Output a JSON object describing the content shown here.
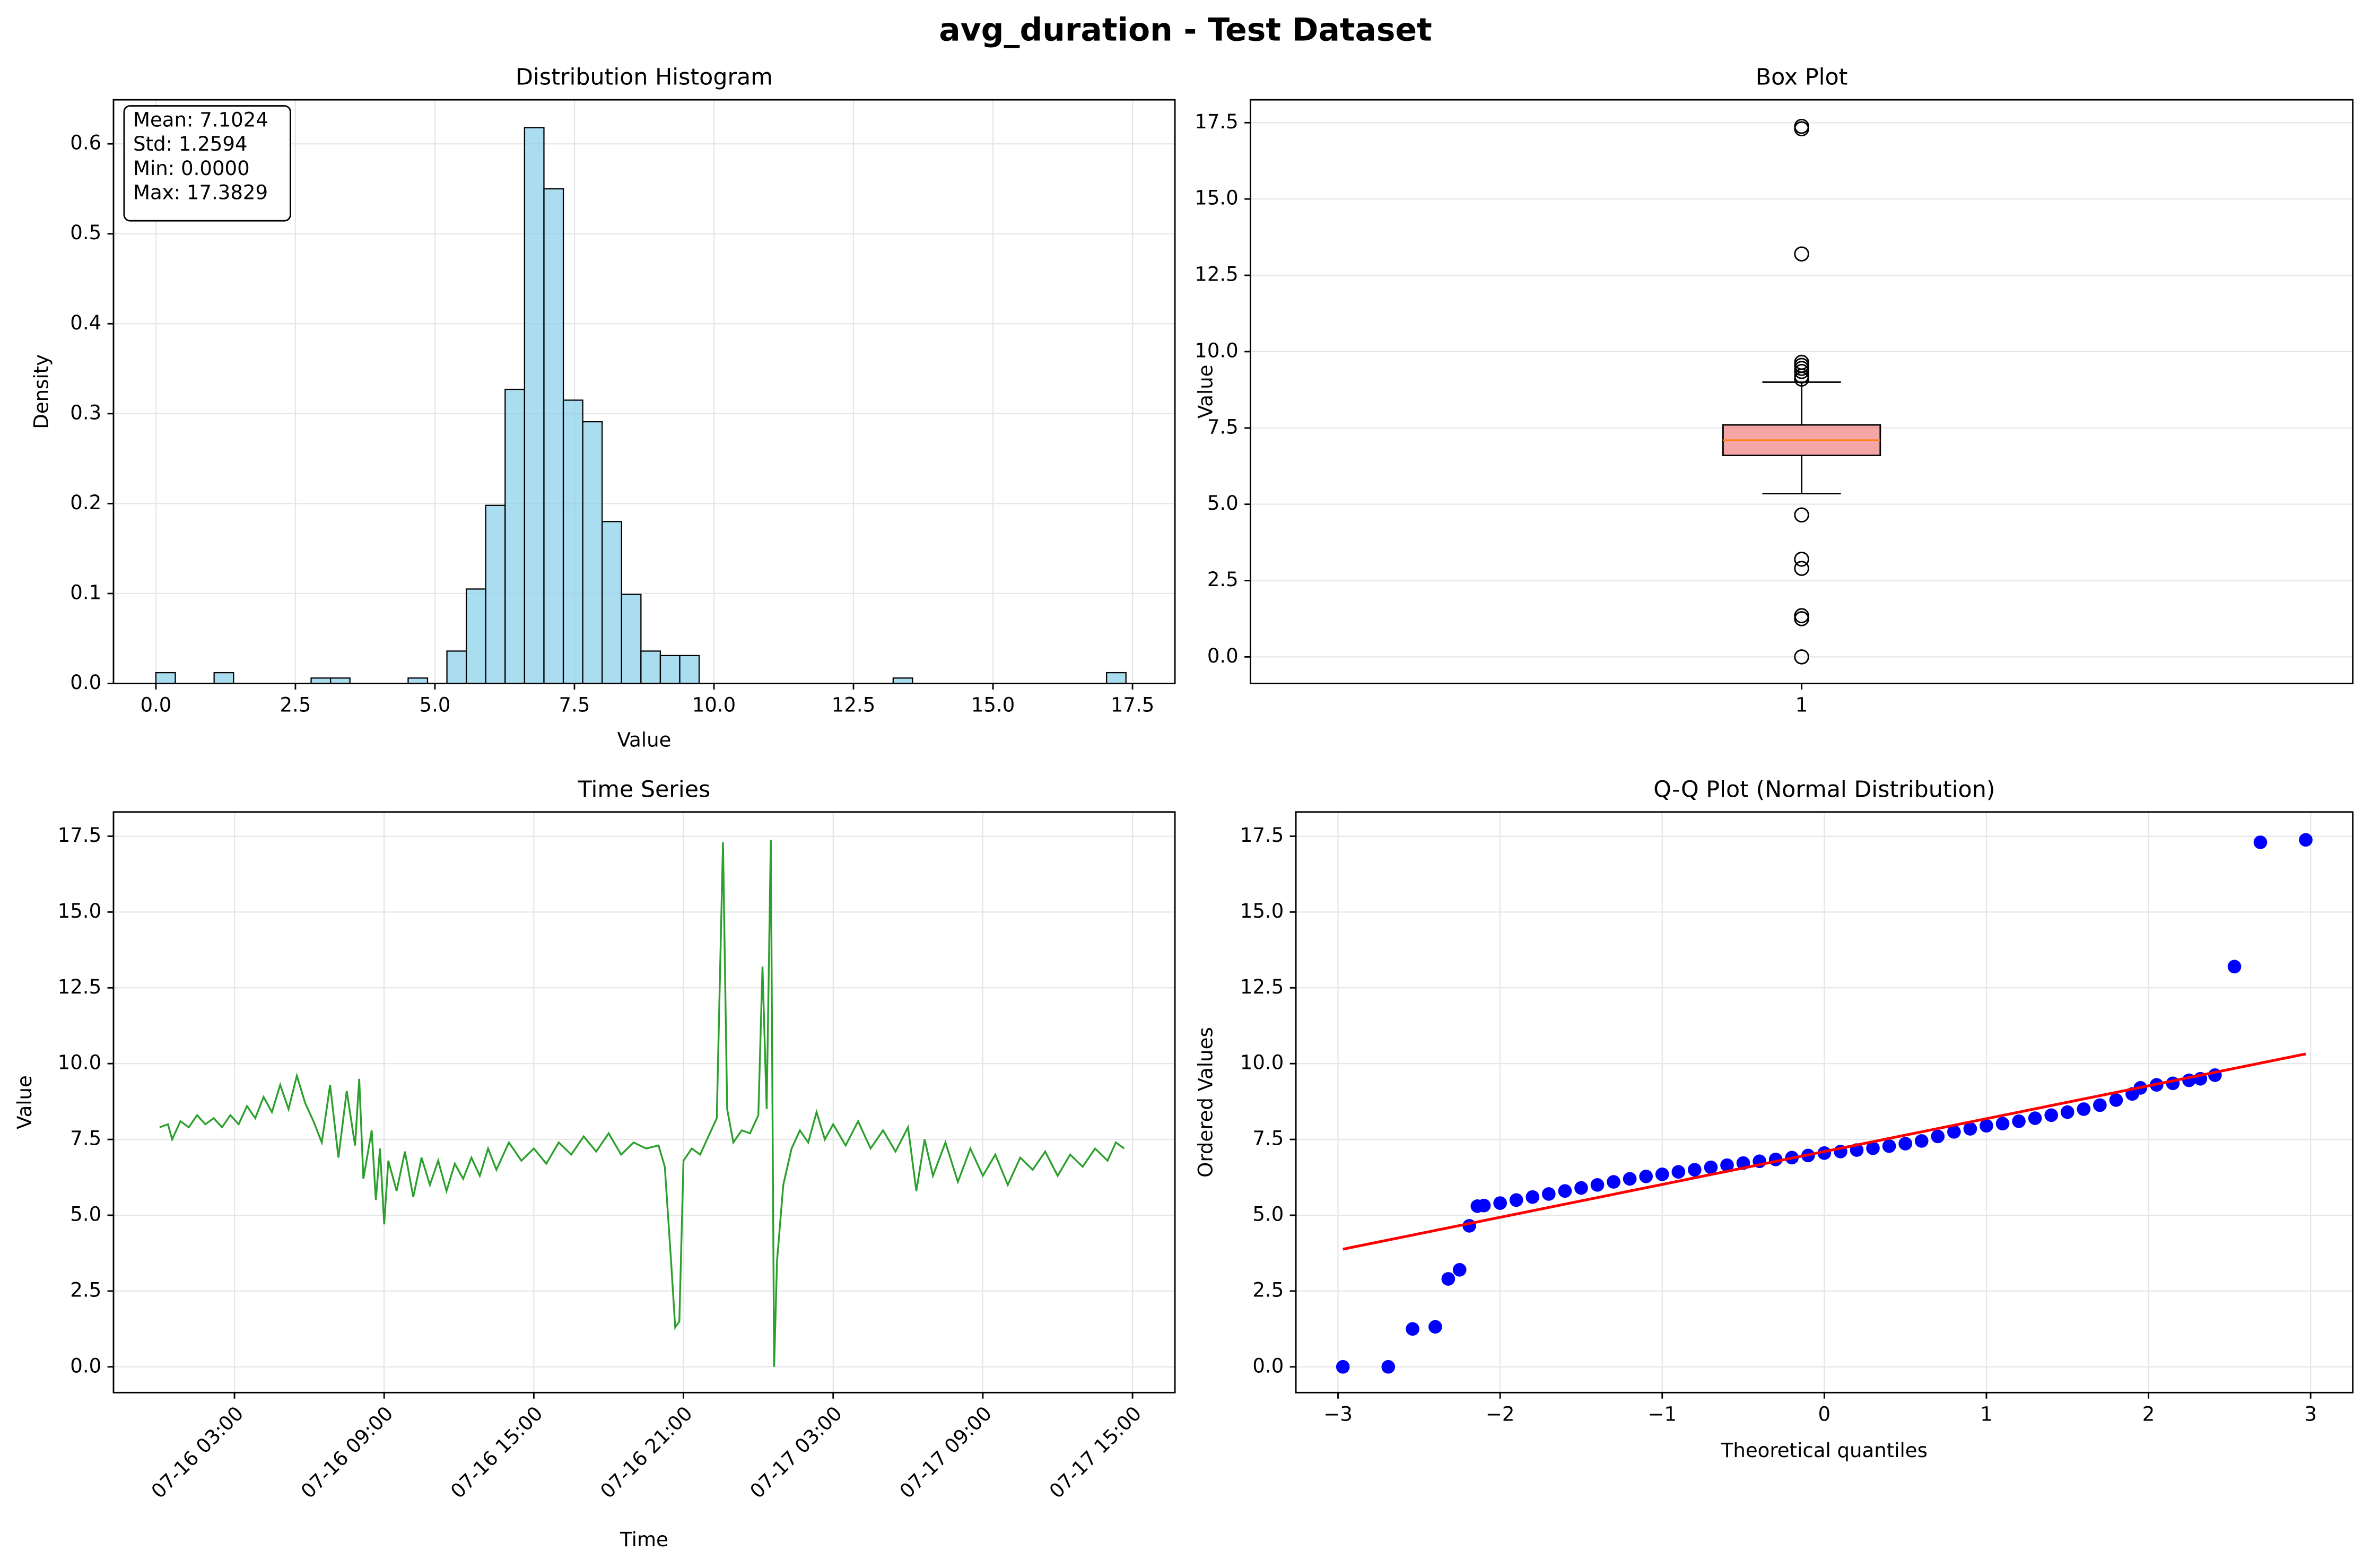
{
  "title": "avg_duration - Test Dataset",
  "chart_data": [
    {
      "type": "histogram",
      "title": "Distribution Histogram",
      "xlabel": "Value",
      "ylabel": "Density",
      "color": "#87ceeb",
      "grid": true,
      "annotation": [
        "Mean: 7.1024",
        "Std: 1.2594",
        "Min: 0.0000",
        "Max: 17.3829"
      ],
      "bins": [
        0,
        0.3477,
        0.6953,
        1.043,
        1.3907,
        1.7383,
        2.086,
        2.4336,
        2.7813,
        3.1289,
        3.4766,
        3.8243,
        4.1719,
        4.5196,
        4.8672,
        5.2149,
        5.5626,
        5.9102,
        6.2579,
        6.6055,
        6.9532,
        7.3008,
        7.6485,
        7.9962,
        8.3438,
        8.6915,
        9.0391,
        9.3868,
        9.7344,
        10.0821,
        10.4297,
        10.7774,
        11.1251,
        11.4727,
        11.8204,
        12.168,
        12.5157,
        12.8634,
        13.211,
        13.5587,
        13.9063,
        14.254,
        14.6016,
        14.9493,
        15.297,
        15.6446,
        15.9923,
        16.3399,
        16.6876,
        17.0352,
        17.3829
      ],
      "values": [
        0.012,
        0,
        0,
        0.012,
        0,
        0,
        0,
        0,
        0.006,
        0.006,
        0,
        0,
        0,
        0.006,
        0,
        0.036,
        0.105,
        0.198,
        0.327,
        0.618,
        0.55,
        0.315,
        0.291,
        0.18,
        0.099,
        0.036,
        0.031,
        0.031,
        0,
        0,
        0,
        0,
        0,
        0,
        0,
        0,
        0,
        0,
        0.006,
        0,
        0,
        0,
        0,
        0,
        0,
        0,
        0,
        0,
        0,
        0.012
      ],
      "xlim": [
        -0.76,
        18.26
      ],
      "xticks": [
        {
          "value": 0,
          "label": "0.0"
        },
        2.5,
        {
          "value": 5,
          "label": "5.0"
        },
        7.5,
        {
          "value": 10,
          "label": "10.0"
        },
        12.5,
        {
          "value": 15,
          "label": "15.0"
        },
        17.5
      ],
      "ylim": [
        0,
        0.649
      ],
      "yticks": [
        {
          "value": 0,
          "label": "0.0"
        },
        0.1,
        0.2,
        0.3,
        0.4,
        0.5,
        0.6
      ]
    },
    {
      "type": "box",
      "title": "Box Plot",
      "ylabel": "Value",
      "color": "#f08080",
      "median_color": "#ff7f0e",
      "grid": true,
      "categories": [
        "1"
      ],
      "whisker_low": 5.35,
      "q1": 6.6,
      "median": 7.1,
      "q3": 7.6,
      "whisker_high": 9.0,
      "outliers": [
        17.38,
        17.3,
        13.2,
        9.65,
        9.55,
        9.45,
        9.35,
        9.2,
        9.1,
        4.65,
        3.2,
        2.9,
        1.35,
        1.25,
        0.0
      ],
      "ylim": [
        -0.87,
        18.25
      ],
      "yticks": [
        {
          "value": 0,
          "label": "0.0"
        },
        2.5,
        {
          "value": 5,
          "label": "5.0"
        },
        7.5,
        {
          "value": 10,
          "label": "10.0"
        },
        12.5,
        {
          "value": 15,
          "label": "15.0"
        },
        17.5
      ]
    },
    {
      "type": "line",
      "title": "Time Series",
      "xlabel": "Time",
      "ylabel": "Value",
      "color": "#2ca02c",
      "grid": true,
      "x": [
        "07-16 00:00",
        "07-16 00:20",
        "07-16 00:30",
        "07-16 00:50",
        "07-16 01:10",
        "07-16 01:30",
        "07-16 01:50",
        "07-16 02:10",
        "07-16 02:30",
        "07-16 02:50",
        "07-16 03:10",
        "07-16 03:30",
        "07-16 03:50",
        "07-16 04:10",
        "07-16 04:30",
        "07-16 04:50",
        "07-16 05:10",
        "07-16 05:30",
        "07-16 05:50",
        "07-16 06:10",
        "07-16 06:30",
        "07-16 06:50",
        "07-16 07:10",
        "07-16 07:30",
        "07-16 07:50",
        "07-16 08:00",
        "07-16 08:10",
        "07-16 08:30",
        "07-16 08:40",
        "07-16 08:50",
        "07-16 09:00",
        "07-16 09:10",
        "07-16 09:30",
        "07-16 09:50",
        "07-16 10:10",
        "07-16 10:30",
        "07-16 10:50",
        "07-16 11:10",
        "07-16 11:30",
        "07-16 11:50",
        "07-16 12:10",
        "07-16 12:30",
        "07-16 12:50",
        "07-16 13:10",
        "07-16 13:30",
        "07-16 14:00",
        "07-16 14:30",
        "07-16 15:00",
        "07-16 15:30",
        "07-16 16:00",
        "07-16 16:30",
        "07-16 17:00",
        "07-16 17:30",
        "07-16 18:00",
        "07-16 18:30",
        "07-16 19:00",
        "07-16 19:30",
        "07-16 20:00",
        "07-16 20:15",
        "07-16 20:30",
        "07-16 20:40",
        "07-16 20:50",
        "07-16 21:00",
        "07-16 21:20",
        "07-16 21:40",
        "07-16 22:00",
        "07-16 22:20",
        "07-16 22:35",
        "07-16 22:45",
        "07-16 23:00",
        "07-16 23:20",
        "07-16 23:40",
        "07-17 00:00",
        "07-17 00:10",
        "07-17 00:20",
        "07-17 00:30",
        "07-17 00:38",
        "07-17 00:45",
        "07-17 01:00",
        "07-17 01:20",
        "07-17 01:40",
        "07-17 02:00",
        "07-17 02:20",
        "07-17 02:40",
        "07-17 03:00",
        "07-17 03:30",
        "07-17 04:00",
        "07-17 04:30",
        "07-17 05:00",
        "07-17 05:30",
        "07-17 06:00",
        "07-17 06:20",
        "07-17 06:40",
        "07-17 07:00",
        "07-17 07:30",
        "07-17 08:00",
        "07-17 08:30",
        "07-17 09:00",
        "07-17 09:30",
        "07-17 10:00",
        "07-17 10:30",
        "07-17 11:00",
        "07-17 11:30",
        "07-17 12:00",
        "07-17 12:30",
        "07-17 13:00",
        "07-17 13:30",
        "07-17 14:00",
        "07-17 14:20",
        "07-17 14:40"
      ],
      "values": [
        7.9,
        8.0,
        7.5,
        8.1,
        7.9,
        8.3,
        8.0,
        8.2,
        7.9,
        8.3,
        8.0,
        8.6,
        8.2,
        8.9,
        8.4,
        9.3,
        8.5,
        9.6,
        8.7,
        8.1,
        7.4,
        9.3,
        6.9,
        9.1,
        7.3,
        9.5,
        6.2,
        7.8,
        5.5,
        7.2,
        4.7,
        6.8,
        5.8,
        7.1,
        5.6,
        6.9,
        6.0,
        6.8,
        5.8,
        6.7,
        6.2,
        6.9,
        6.3,
        7.2,
        6.5,
        7.4,
        6.8,
        7.2,
        6.7,
        7.4,
        7.0,
        7.6,
        7.1,
        7.7,
        7.0,
        7.4,
        7.2,
        7.3,
        6.6,
        3.5,
        1.3,
        1.5,
        6.8,
        7.2,
        7.0,
        7.6,
        8.2,
        17.3,
        8.5,
        7.4,
        7.8,
        7.7,
        8.3,
        13.2,
        8.5,
        17.38,
        0.0,
        3.5,
        6.0,
        7.2,
        7.8,
        7.4,
        8.4,
        7.5,
        8.0,
        7.3,
        8.1,
        7.2,
        7.8,
        7.1,
        7.9,
        5.8,
        7.5,
        6.3,
        7.4,
        6.1,
        7.2,
        6.3,
        7.0,
        6.0,
        6.9,
        6.5,
        7.1,
        6.3,
        7.0,
        6.6,
        7.2,
        6.8,
        7.4,
        7.2
      ],
      "xlim": [
        "07-15 22:09",
        "07-17 16:42"
      ],
      "xticks": [
        "07-16 03:00",
        "07-16 09:00",
        "07-16 15:00",
        "07-16 21:00",
        "07-17 03:00",
        "07-17 09:00",
        "07-17 15:00"
      ],
      "ylim": [
        -0.85,
        18.3
      ],
      "yticks": [
        {
          "value": 0,
          "label": "0.0"
        },
        2.5,
        {
          "value": 5,
          "label": "5.0"
        },
        7.5,
        {
          "value": 10,
          "label": "10.0"
        },
        12.5,
        {
          "value": 15,
          "label": "15.0"
        },
        17.5
      ]
    },
    {
      "type": "scatter",
      "title": "Q-Q Plot (Normal Distribution)",
      "xlabel": "Theoretical quantiles",
      "ylabel": "Ordered Values",
      "color": "#0000ff",
      "fit_color": "#ff0000",
      "grid": true,
      "x": [
        -2.97,
        -2.69,
        -2.54,
        -2.4,
        -2.32,
        -2.25,
        -2.19,
        -2.14,
        -2.1,
        -2.0,
        -1.9,
        -1.8,
        -1.7,
        -1.6,
        -1.5,
        -1.4,
        -1.3,
        -1.2,
        -1.1,
        -1.0,
        -0.9,
        -0.8,
        -0.7,
        -0.6,
        -0.5,
        -0.4,
        -0.3,
        -0.2,
        -0.1,
        0,
        0.1,
        0.2,
        0.3,
        0.4,
        0.5,
        0.6,
        0.7,
        0.8,
        0.9,
        1.0,
        1.1,
        1.2,
        1.3,
        1.4,
        1.5,
        1.6,
        1.7,
        1.8,
        1.9,
        1.95,
        2.05,
        2.15,
        2.25,
        2.32,
        2.41,
        2.53,
        2.69,
        2.97
      ],
      "values": [
        0,
        0,
        1.25,
        1.32,
        2.9,
        3.2,
        4.65,
        5.3,
        5.32,
        5.4,
        5.5,
        5.6,
        5.7,
        5.8,
        5.9,
        6.0,
        6.1,
        6.2,
        6.28,
        6.35,
        6.43,
        6.5,
        6.58,
        6.65,
        6.72,
        6.78,
        6.84,
        6.9,
        6.97,
        7.05,
        7.1,
        7.15,
        7.21,
        7.28,
        7.36,
        7.45,
        7.6,
        7.75,
        7.85,
        7.95,
        8.02,
        8.1,
        8.2,
        8.3,
        8.4,
        8.5,
        8.63,
        8.8,
        9.0,
        9.2,
        9.3,
        9.35,
        9.45,
        9.5,
        9.62,
        13.2,
        17.3,
        17.38
      ],
      "fit": {
        "x": [
          -2.97,
          2.97
        ],
        "y": [
          3.88,
          10.32
        ]
      },
      "xlim": [
        -3.26,
        3.26
      ],
      "xticks": [
        {
          "value": -3,
          "label": "−3"
        },
        {
          "value": -2,
          "label": "−2"
        },
        {
          "value": -1,
          "label": "−1"
        },
        0,
        1,
        2,
        3
      ],
      "ylim": [
        -0.85,
        18.3
      ],
      "yticks": [
        {
          "value": 0,
          "label": "0.0"
        },
        2.5,
        {
          "value": 5,
          "label": "5.0"
        },
        7.5,
        {
          "value": 10,
          "label": "10.0"
        },
        12.5,
        {
          "value": 15,
          "label": "15.0"
        },
        17.5
      ]
    }
  ]
}
